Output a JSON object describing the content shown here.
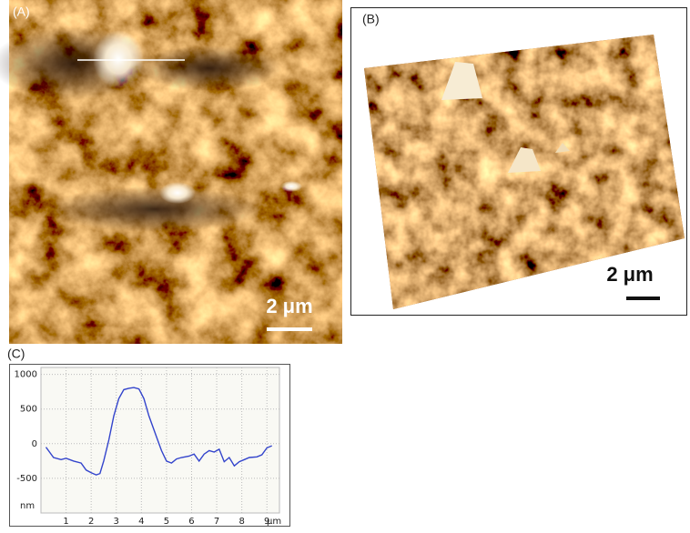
{
  "panels": {
    "A": {
      "label": "(A)",
      "scale": "2 μm"
    },
    "B": {
      "label": "(B)",
      "scale": "2 μm"
    },
    "C": {
      "label": "(C)"
    }
  },
  "chart_data": {
    "type": "line",
    "x_unit": "μm",
    "y_unit": "nm",
    "x": [
      0.2,
      0.5,
      0.8,
      1.0,
      1.3,
      1.6,
      1.8,
      2.0,
      2.2,
      2.35,
      2.5,
      2.7,
      2.9,
      3.1,
      3.3,
      3.5,
      3.7,
      3.9,
      4.1,
      4.3,
      4.6,
      4.8,
      5.0,
      5.2,
      5.4,
      5.6,
      5.9,
      6.1,
      6.3,
      6.5,
      6.7,
      6.9,
      7.1,
      7.3,
      7.5,
      7.7,
      7.9,
      8.1,
      8.3,
      8.6,
      8.8,
      9.0,
      9.2
    ],
    "values": [
      -50,
      -200,
      -230,
      -210,
      -250,
      -280,
      -380,
      -420,
      -450,
      -430,
      -250,
      50,
      400,
      650,
      780,
      800,
      810,
      790,
      650,
      400,
      100,
      -100,
      -250,
      -280,
      -220,
      -200,
      -180,
      -150,
      -250,
      -150,
      -100,
      -120,
      -80,
      -260,
      -200,
      -320,
      -260,
      -230,
      -200,
      -190,
      -160,
      -60,
      -30
    ],
    "color": "#3344cc",
    "xlim": [
      0,
      9.5
    ],
    "ylim": [
      -1000,
      1100
    ],
    "xticks": [
      1,
      2,
      3,
      4,
      5,
      6,
      7,
      8,
      9
    ],
    "yticks": [
      -500,
      0,
      500,
      1000
    ],
    "grid": true
  }
}
